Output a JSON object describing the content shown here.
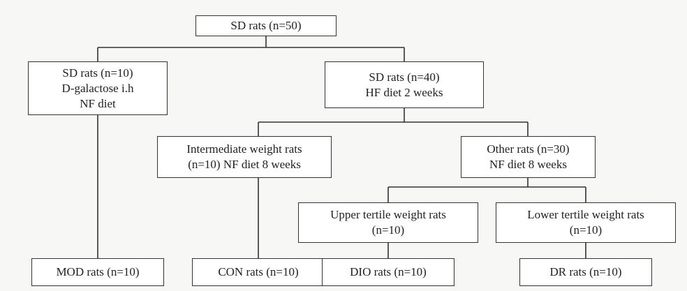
{
  "nodes": [
    {
      "lines": [
        "SD rats (n=50)"
      ]
    },
    {
      "lines": [
        "SD rats (n=10)",
        "D-galactose i.h",
        "NF diet"
      ]
    },
    {
      "lines": [
        "SD rats (n=40)",
        "HF diet 2 weeks"
      ]
    },
    {
      "lines": [
        "Intermediate weight rats",
        "(n=10) NF diet 8 weeks"
      ]
    },
    {
      "lines": [
        "Other rats (n=30)",
        "NF diet 8 weeks"
      ]
    },
    {
      "lines": [
        "Upper tertile weight rats",
        "(n=10)"
      ]
    },
    {
      "lines": [
        "Lower tertile weight rats",
        "(n=10)"
      ]
    },
    {
      "lines": [
        "MOD rats (n=10)"
      ]
    },
    {
      "lines": [
        "CON rats (n=10)"
      ]
    },
    {
      "lines": [
        "DIO rats (n=10)"
      ]
    },
    {
      "lines": [
        "DR rats (n=10)"
      ]
    }
  ]
}
